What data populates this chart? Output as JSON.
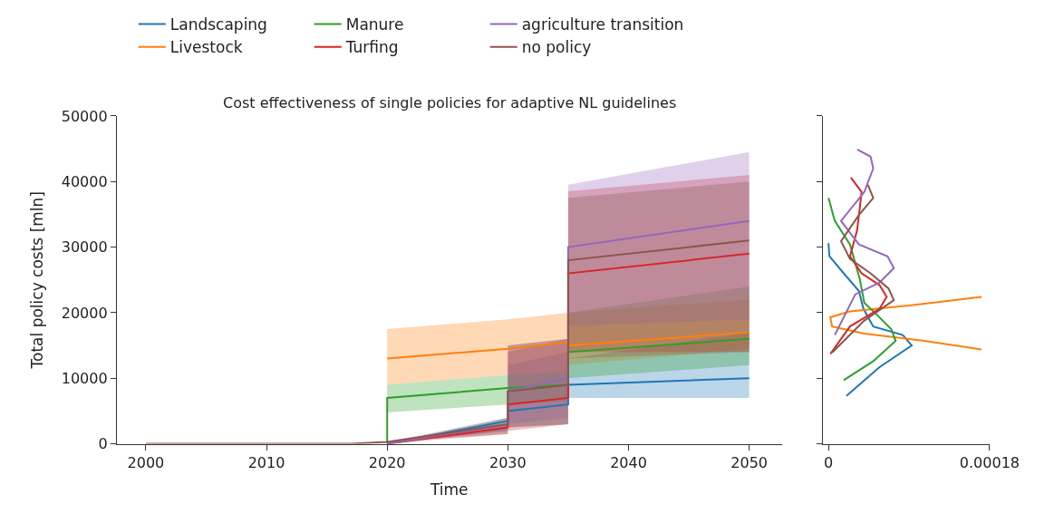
{
  "chart_data": [
    {
      "type": "line",
      "title": "Cost effectiveness of single policies for adaptive NL guidelines",
      "xlabel": "Time",
      "ylabel": "Total policy costs [mln]",
      "series": [
        {
          "name": "Landscaping",
          "color": "#1f77b4",
          "x": [
            2020,
            2030,
            2030,
            2035,
            2035,
            2050
          ],
          "values": [
            0,
            3500,
            5000,
            6000,
            9000,
            10000
          ],
          "lower": [
            0,
            2000,
            2500,
            3000,
            7000,
            7000
          ],
          "upper": [
            0,
            4000,
            12000,
            14000,
            13000,
            17000
          ]
        },
        {
          "name": "Livestock",
          "color": "#ff7f0e",
          "x": [
            2020,
            2030,
            2030,
            2035,
            2035,
            2050
          ],
          "values": [
            13000,
            14500,
            14500,
            15500,
            15000,
            17000
          ],
          "lower": [
            9000,
            10500,
            10500,
            11000,
            12000,
            14500
          ],
          "upper": [
            17500,
            19000,
            19000,
            20000,
            20000,
            22000
          ]
        },
        {
          "name": "Manure",
          "color": "#2ca02c",
          "x": [
            2020,
            2020,
            2030,
            2030,
            2035,
            2035,
            2050
          ],
          "values": [
            0,
            7000,
            8500,
            8500,
            9000,
            14000,
            16000
          ],
          "lower": [
            0,
            4800,
            6000,
            6000,
            6500,
            10000,
            12000
          ],
          "upper": [
            0,
            9000,
            10500,
            10500,
            11000,
            20000,
            24000
          ]
        },
        {
          "name": "Turfing",
          "color": "#d62728",
          "x": [
            2020,
            2030,
            2030,
            2035,
            2035,
            2050
          ],
          "values": [
            0,
            2500,
            6000,
            7000,
            26000,
            29000
          ],
          "lower": [
            0,
            1500,
            2000,
            3000,
            14000,
            14000
          ],
          "upper": [
            0,
            3000,
            14000,
            16000,
            38500,
            41000
          ]
        },
        {
          "name": "agriculture transition",
          "color": "#9467bd",
          "x": [
            2020,
            2030,
            2030,
            2035,
            2035,
            2050
          ],
          "values": [
            0,
            3000,
            8000,
            10000,
            30000,
            34000
          ],
          "lower": [
            0,
            2000,
            3000,
            4000,
            18000,
            19000
          ],
          "upper": [
            0,
            3500,
            15000,
            16000,
            39500,
            44500
          ]
        },
        {
          "name": "no policy",
          "color": "#8c564b",
          "x": [
            2000,
            2017,
            2020,
            2030,
            2030,
            2035,
            2035,
            2050
          ],
          "values": [
            0,
            0,
            300,
            3000,
            8000,
            9000,
            28000,
            31000
          ],
          "lower": [
            0,
            0,
            300,
            1500,
            2500,
            3000,
            13000,
            14000
          ],
          "upper": [
            0,
            0,
            300,
            4000,
            15000,
            16000,
            37500,
            40000
          ]
        }
      ],
      "xlim": [
        1997.6,
        2052.7
      ],
      "ylim": [
        0,
        50000
      ],
      "xticks": [
        2000,
        2010,
        2020,
        2030,
        2040,
        2050
      ],
      "yticks": [
        0,
        10000,
        20000,
        30000,
        40000,
        50000
      ],
      "legend": "top"
    },
    {
      "type": "line",
      "tick_labels": "x",
      "series": [
        {
          "color": "#1f77b4",
          "x": [
            2e-05,
            5.7e-05,
            9.3e-05,
            8.3e-05,
            5e-05,
            3.9e-05,
            3.4e-05,
            1.7e-05,
            1e-06,
            0
          ],
          "values": [
            7300,
            11700,
            15000,
            16600,
            17900,
            20600,
            23300,
            26000,
            28600,
            30600
          ]
        },
        {
          "color": "#ff7f0e",
          "x": [
            0.000171,
            0.000107,
            4e-05,
            4e-06,
            2e-06,
            2.4e-05,
            9e-05,
            0.000171
          ],
          "values": [
            14400,
            15700,
            16800,
            17900,
            19300,
            20200,
            21100,
            22400
          ]
        },
        {
          "color": "#2ca02c",
          "x": [
            1.7e-05,
            5e-05,
            7.5e-05,
            7e-05,
            5.4e-05,
            4e-05,
            3.5e-05,
            2.4e-05,
            7e-06,
            0
          ],
          "values": [
            9700,
            12600,
            15700,
            17500,
            19700,
            21500,
            25100,
            30400,
            34000,
            37500
          ]
        },
        {
          "color": "#d62728",
          "x": [
            2e-06,
            2.4e-05,
            5.7e-05,
            6.5e-05,
            5.7e-05,
            3.7e-05,
            2.4e-05,
            3.2e-05,
            3.7e-05,
            2.5e-05
          ],
          "values": [
            13700,
            17900,
            20600,
            22400,
            24200,
            26000,
            28600,
            32600,
            38400,
            40600
          ]
        },
        {
          "color": "#9467bd",
          "x": [
            7e-06,
            3e-05,
            5.7e-05,
            7.3e-05,
            6.6e-05,
            3.4e-05,
            1.4e-05,
            4e-05,
            5e-05,
            4.7e-05,
            3.2e-05
          ],
          "values": [
            16600,
            22800,
            24600,
            26800,
            28600,
            30400,
            34000,
            38400,
            42000,
            43800,
            44900
          ]
        },
        {
          "color": "#8c564b",
          "x": [
            4e-06,
            4e-05,
            7.3e-05,
            6.7e-05,
            4.7e-05,
            2.4e-05,
            1.4e-05,
            3.4e-05,
            5e-05,
            4.4e-05
          ],
          "values": [
            13900,
            18800,
            21900,
            23700,
            26000,
            28200,
            30900,
            34900,
            37500,
            39500
          ]
        }
      ],
      "xlim": [
        -6e-06,
        0.00018
      ],
      "ylim": [
        0,
        50000
      ],
      "xticks": [
        0,
        0.00018
      ],
      "yticks": [
        0,
        10000,
        20000,
        30000,
        40000,
        50000
      ],
      "legend": false
    }
  ]
}
